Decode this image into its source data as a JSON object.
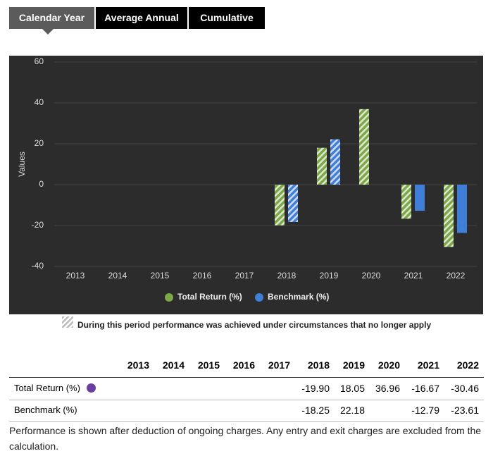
{
  "tabs": [
    "Calendar Year",
    "Average Annual",
    "Cumulative"
  ],
  "chart_data": {
    "type": "bar",
    "y_label": "Values",
    "categories": [
      "2013",
      "2014",
      "2015",
      "2016",
      "2017",
      "2018",
      "2019",
      "2020",
      "2021",
      "2022"
    ],
    "series": [
      {
        "name": "Total Return (%)",
        "color": "#7ca84a",
        "values": [
          null,
          null,
          null,
          null,
          null,
          -19.9,
          18.05,
          36.96,
          -16.67,
          -30.46
        ],
        "value_labels": [
          null,
          null,
          null,
          null,
          null,
          "-19.90",
          "18.05",
          "36.96",
          "-16.67",
          "-30.46"
        ],
        "hatched": [
          false,
          false,
          false,
          false,
          false,
          true,
          true,
          true,
          true,
          true
        ]
      },
      {
        "name": "Benchmark (%)",
        "color": "#3f7fd8",
        "values": [
          null,
          null,
          null,
          null,
          null,
          -18.25,
          22.18,
          null,
          -12.79,
          -23.61
        ],
        "value_labels": [
          null,
          null,
          null,
          null,
          null,
          "-18.25",
          "22.18",
          null,
          "-12.79",
          "-23.61"
        ],
        "hatched": [
          false,
          false,
          false,
          false,
          false,
          true,
          true,
          false,
          false,
          false
        ]
      }
    ],
    "ylim": [
      -40,
      60
    ],
    "yticks": [
      60,
      40,
      20,
      0,
      -20,
      -40
    ],
    "grid": true,
    "hatch_note": "During this period performance was achieved under circumstances that no longer apply"
  },
  "footer_note": "Performance is shown after deduction of ongoing charges. Any entry and exit charges are excluded from the calculation."
}
